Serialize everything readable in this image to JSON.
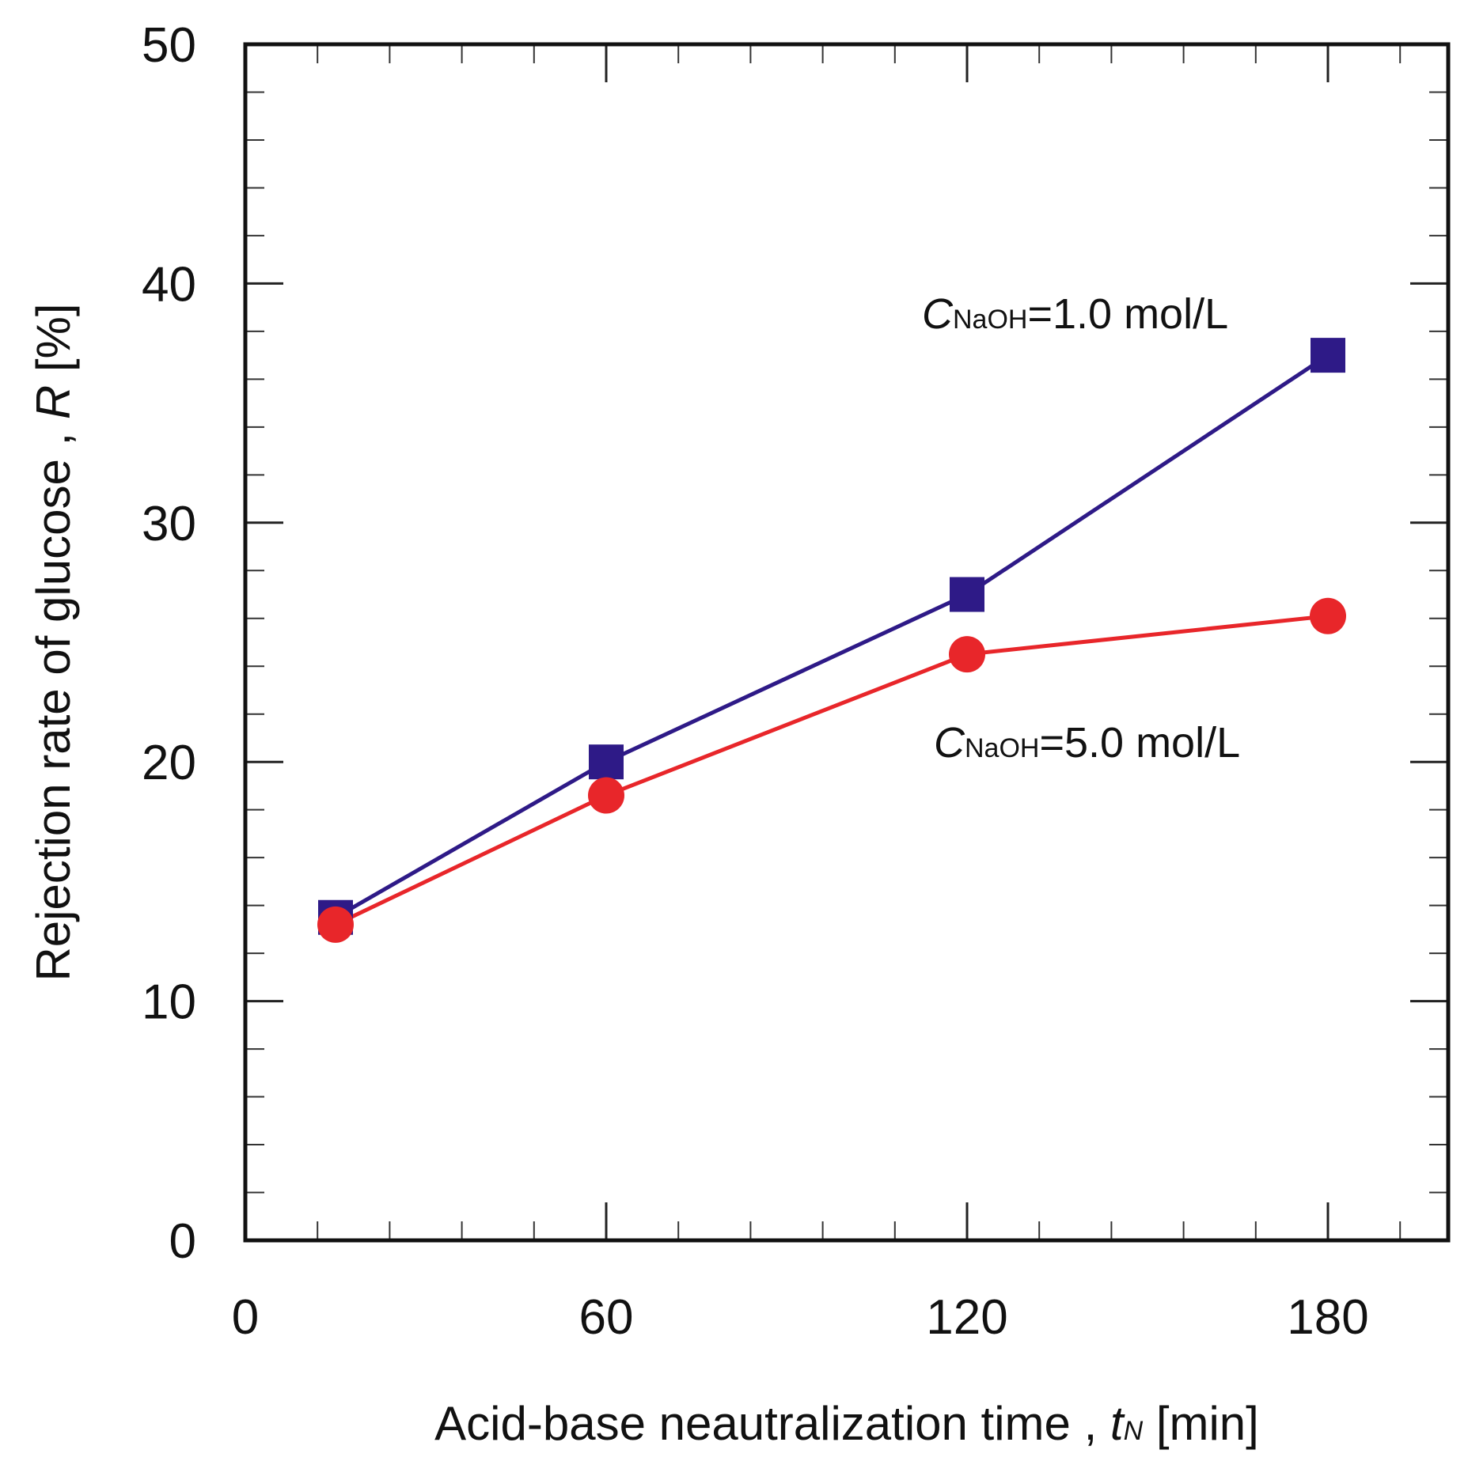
{
  "chart_data": {
    "type": "line",
    "title": "",
    "xlabel": {
      "main": "Acid-base neautralization time , ",
      "symbol": "t",
      "subscript": "N",
      "unit": " [min]"
    },
    "ylabel": {
      "main": "Rejection rate of glucose , ",
      "symbol": "R",
      "unit": " [%]"
    },
    "xlim": [
      0,
      200
    ],
    "ylim": [
      0,
      50
    ],
    "x_ticks": [
      0,
      60,
      120,
      180
    ],
    "y_ticks": [
      0,
      10,
      20,
      30,
      40,
      50
    ],
    "x_minor_step": 12,
    "y_minor_step": 2,
    "grid": false,
    "series": [
      {
        "name": "CNaOH=1.0 mol/L",
        "marker": "square",
        "color": "#2e1a87",
        "x": [
          15,
          60,
          120,
          180
        ],
        "values": [
          13.5,
          20.0,
          27.0,
          37.0
        ],
        "label": {
          "prefix": "C",
          "sub": "NaOH",
          "suffix": "=1.0 mol/L"
        }
      },
      {
        "name": "CNaOH=5.0 mol/L",
        "marker": "circle",
        "color": "#e8262a",
        "x": [
          15,
          60,
          120,
          180
        ],
        "values": [
          13.2,
          18.6,
          24.5,
          26.1
        ],
        "label": {
          "prefix": "C",
          "sub": "NaOH",
          "suffix": "=5.0 mol/L"
        }
      }
    ]
  }
}
